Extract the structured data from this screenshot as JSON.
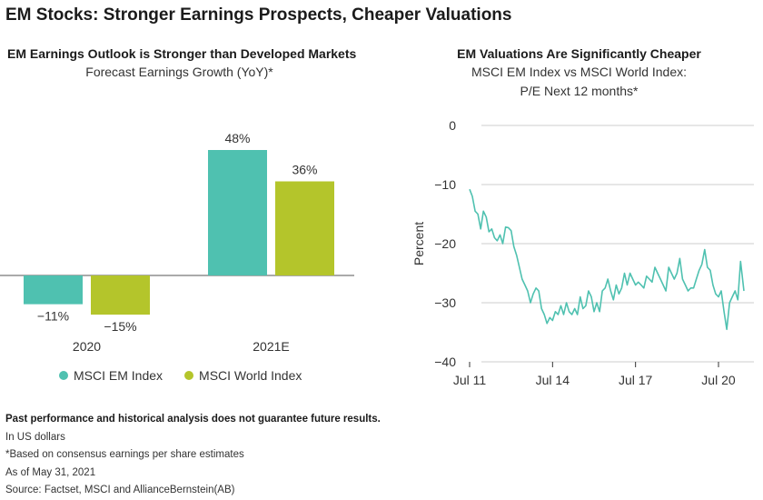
{
  "page": {
    "title": "EM Stocks: Stronger Earnings Prospects, Cheaper Valuations"
  },
  "colors": {
    "em": "#4fc1b0",
    "world": "#b4c52b",
    "line": "#4fc1b0",
    "axis": "#333333",
    "grid": "#cccccc"
  },
  "left_chart": {
    "subtitle": "EM Earnings Outlook is Stronger than Developed Markets",
    "caption": "Forecast Earnings Growth (YoY)*",
    "legend": [
      {
        "label": "MSCI EM Index",
        "color_key": "em"
      },
      {
        "label": "MSCI World Index",
        "color_key": "world"
      }
    ]
  },
  "right_chart": {
    "subtitle": "EM Valuations Are Significantly Cheaper",
    "caption_line1": "MSCI EM Index vs MSCI World Index:",
    "caption_line2": "P/E Next 12 months*"
  },
  "footnotes": {
    "disclaimer": "Past performance and historical analysis does not guarantee future results.",
    "line1": "In US dollars",
    "line2": "*Based on consensus earnings per share estimates",
    "line3": "As of May 31, 2021",
    "line4": "Source: Factset, MSCI and AllianceBernstein(AB)"
  },
  "chart_data": [
    {
      "type": "bar",
      "title": "EM Earnings Outlook is Stronger than Developed Markets",
      "subtitle": "Forecast Earnings Growth (YoY)*",
      "categories": [
        "2020",
        "2021E"
      ],
      "series": [
        {
          "name": "MSCI EM Index",
          "values": [
            -11,
            48
          ],
          "labels": [
            "−11%",
            "48%"
          ]
        },
        {
          "name": "MSCI World Index",
          "values": [
            -15,
            36
          ],
          "labels": [
            "−15%",
            "36%"
          ]
        }
      ],
      "ylim": [
        -15,
        48
      ],
      "grid": false,
      "legend": "bottom"
    },
    {
      "type": "line",
      "title": "EM Valuations Are Significantly Cheaper",
      "subtitle": "MSCI EM Index vs MSCI World Index: P/E Next 12 months*",
      "ylabel": "Percent",
      "ylim": [
        -40,
        0
      ],
      "yticks": [
        0,
        -10,
        -20,
        -30,
        -40
      ],
      "xticks": [
        "Jul 11",
        "Jul 14",
        "Jul 17",
        "Jul 20"
      ],
      "xtick_positions": [
        2011.5,
        2014.5,
        2017.5,
        2020.5
      ],
      "xlim": [
        2011.5,
        2021.42
      ],
      "grid": true,
      "series": [
        {
          "x": [
            2011.5,
            2011.6,
            2011.7,
            2011.8,
            2011.9,
            2012.0,
            2012.1,
            2012.2,
            2012.3,
            2012.4,
            2012.5,
            2012.6,
            2012.7,
            2012.8,
            2012.9,
            2013.0,
            2013.1,
            2013.2,
            2013.3,
            2013.4,
            2013.5,
            2013.6,
            2013.7,
            2013.8,
            2013.9,
            2014.0,
            2014.1,
            2014.2,
            2014.3,
            2014.4,
            2014.5,
            2014.6,
            2014.7,
            2014.8,
            2014.9,
            2015.0,
            2015.1,
            2015.2,
            2015.3,
            2015.4,
            2015.5,
            2015.6,
            2015.7,
            2015.8,
            2015.9,
            2016.0,
            2016.1,
            2016.2,
            2016.3,
            2016.4,
            2016.5,
            2016.6,
            2016.7,
            2016.8,
            2016.9,
            2017.0,
            2017.1,
            2017.2,
            2017.3,
            2017.4,
            2017.5,
            2017.6,
            2017.7,
            2017.8,
            2017.9,
            2018.0,
            2018.1,
            2018.2,
            2018.3,
            2018.4,
            2018.5,
            2018.6,
            2018.7,
            2018.8,
            2018.9,
            2019.0,
            2019.1,
            2019.2,
            2019.3,
            2019.4,
            2019.5,
            2019.6,
            2019.7,
            2019.8,
            2019.9,
            2020.0,
            2020.1,
            2020.2,
            2020.3,
            2020.4,
            2020.5,
            2020.6,
            2020.7,
            2020.8,
            2020.9,
            2021.0,
            2021.1,
            2021.2,
            2021.3,
            2021.42
          ],
          "y": [
            -10.8,
            -12,
            -14.5,
            -15,
            -17.5,
            -14.5,
            -15.5,
            -18,
            -17.5,
            -19,
            -19.5,
            -18.5,
            -20,
            -17.2,
            -17.3,
            -17.8,
            -20.5,
            -22,
            -24,
            -26,
            -27,
            -28,
            -30,
            -28.5,
            -27.5,
            -28,
            -31,
            -32,
            -33.5,
            -32.5,
            -33,
            -31.5,
            -32,
            -30.5,
            -32,
            -30,
            -31.5,
            -32,
            -31,
            -32,
            -29,
            -31,
            -30.5,
            -28,
            -29,
            -31.5,
            -30,
            -31.5,
            -28,
            -27.5,
            -26,
            -28,
            -29.5,
            -27,
            -28.5,
            -27.5,
            -25,
            -27,
            -25,
            -26,
            -27,
            -26.5,
            -27,
            -27.5,
            -25.5,
            -26,
            -26.5,
            -24,
            -25,
            -26,
            -27,
            -28,
            -24,
            -25,
            -26,
            -25,
            -22.5,
            -26,
            -27,
            -28,
            -27.5,
            -27.5,
            -26,
            -24.5,
            -23.5,
            -21,
            -24,
            -24.5,
            -27,
            -28.5,
            -29,
            -28,
            -31.5,
            -34.5,
            -30,
            -29,
            -28,
            -29.5,
            -23,
            -28
          ]
        }
      ]
    }
  ]
}
